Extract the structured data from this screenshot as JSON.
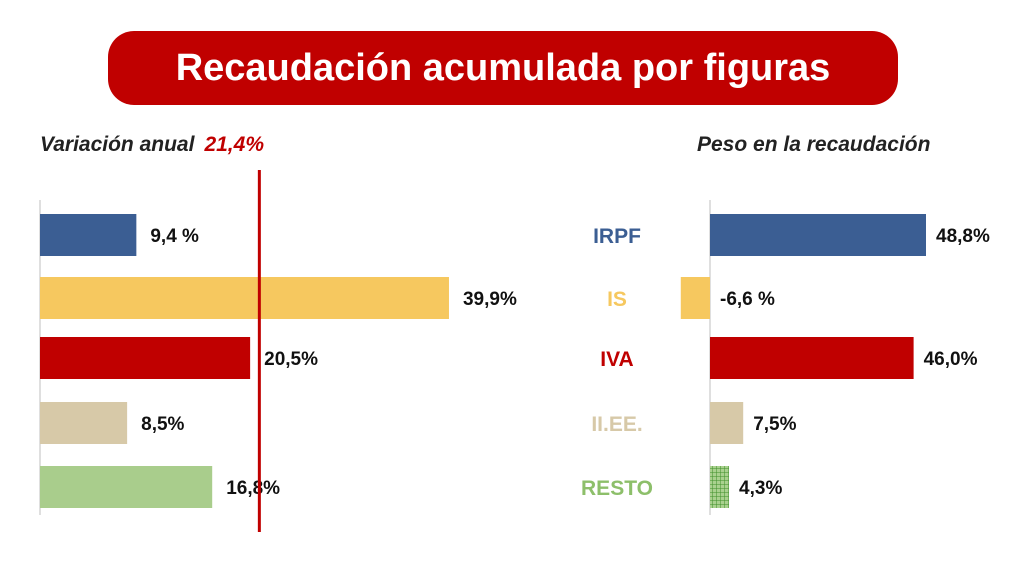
{
  "title": "Recaudación acumulada por figuras",
  "left_subtitle": {
    "text": "Variación anual",
    "total": "21,4%"
  },
  "right_subtitle": "Peso en la recaudación",
  "colors": {
    "banner": "#c00000",
    "reference_line": "#c00000",
    "axis": "#bfbfbf"
  },
  "chart_data": [
    {
      "type": "bar",
      "orientation": "horizontal",
      "title": "Variación anual",
      "categories": [
        "IRPF",
        "IS",
        "IVA",
        "II.EE.",
        "RESTO"
      ],
      "values": [
        9.4,
        39.9,
        20.5,
        8.5,
        16.8
      ],
      "labels": [
        "9,4 %",
        "39,9%",
        "20,5%",
        "8,5%",
        "16,8%"
      ],
      "colors": [
        "#3b5e93",
        "#f6c85f",
        "#c00000",
        "#d7c9a8",
        "#a9cd8c"
      ],
      "reference_line": {
        "value": 21.4,
        "label": "21,4%"
      },
      "xlim": [
        0,
        40
      ]
    },
    {
      "type": "bar",
      "orientation": "horizontal",
      "title": "Peso en la recaudación",
      "categories": [
        "IRPF",
        "IS",
        "IVA",
        "II.EE.",
        "RESTO"
      ],
      "values": [
        48.8,
        -6.6,
        46.0,
        7.5,
        4.3
      ],
      "labels": [
        "48,8%",
        "-6,6 %",
        "46,0%",
        "7,5%",
        "4,3%"
      ],
      "colors": [
        "#3b5e93",
        "#f6c85f",
        "#c00000",
        "#d7c9a8",
        "#6db04e"
      ],
      "xlim": [
        -6.6,
        48.8
      ]
    }
  ],
  "category_colors": [
    "#3b5e93",
    "#f6c85f",
    "#c00000",
    "#d7c9a8",
    "#8dbf6a"
  ]
}
